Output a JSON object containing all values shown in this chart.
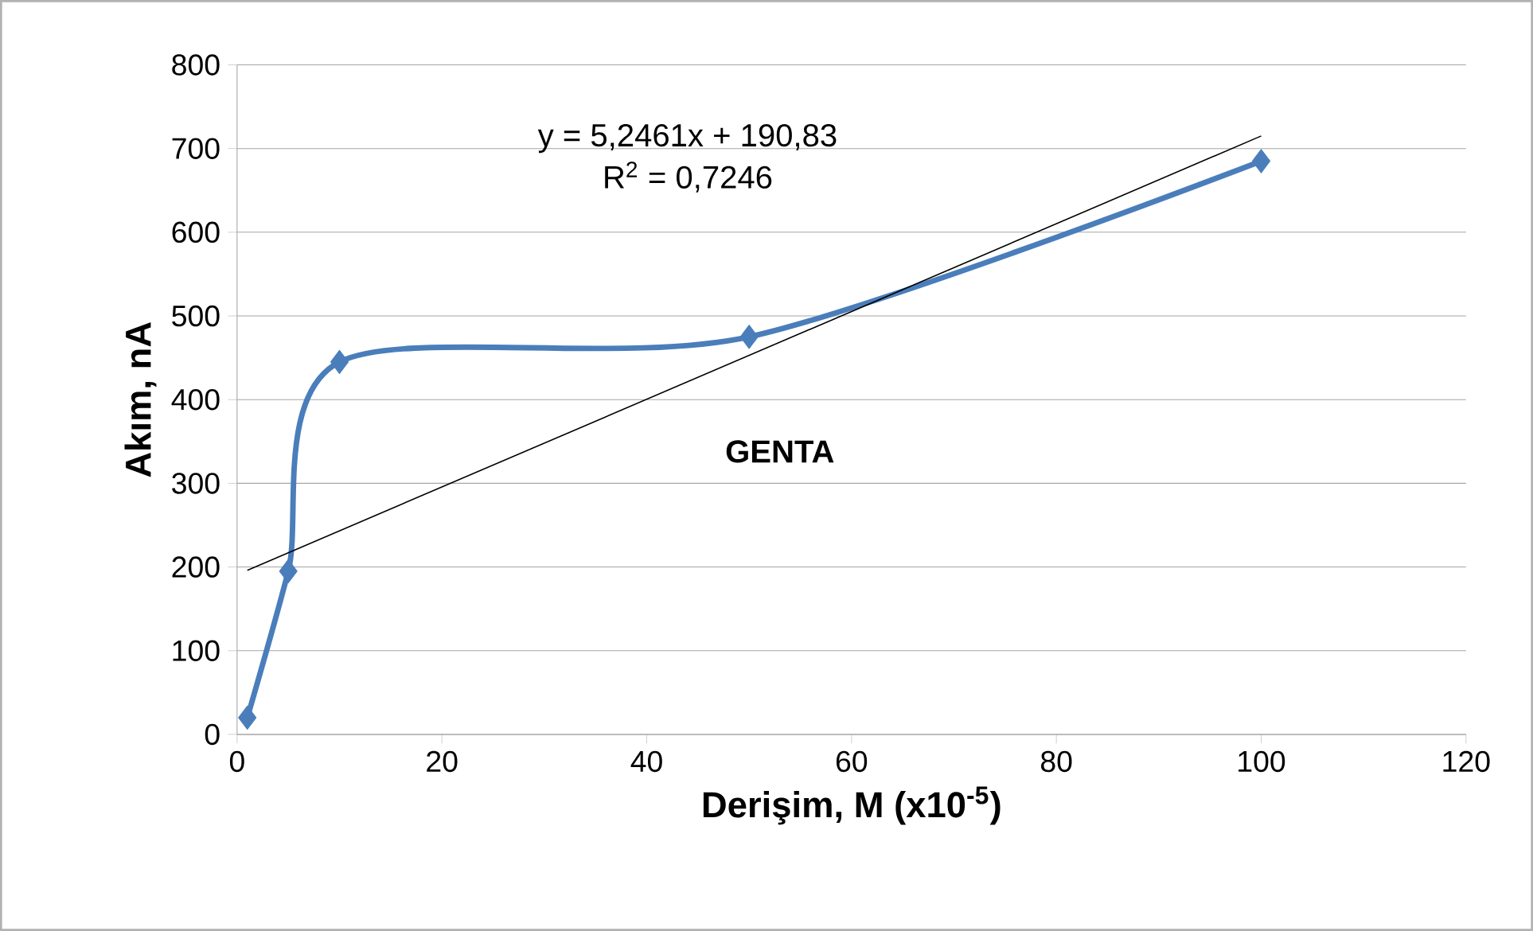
{
  "chart_data": {
    "type": "line",
    "xlabel": "Derişim, M (x10$^{-5}$)",
    "ylabel": "Akım, nA",
    "annotations": [
      "y = 5,2461x + 190,83",
      "R$^{2}$ = 0,7246",
      "GENTA"
    ],
    "xlim": [
      0,
      120
    ],
    "xticks": [
      0,
      20,
      40,
      60,
      80,
      100,
      120
    ],
    "ylim": [
      0,
      800
    ],
    "yticks": [
      0,
      100,
      200,
      300,
      400,
      500,
      600,
      700,
      800
    ],
    "grid": "y",
    "marker": "diamond",
    "series": [
      {
        "color": "#4a7ebb",
        "x": [
          1,
          5,
          10,
          50,
          100
        ],
        "values": [
          20,
          195,
          445,
          475,
          685
        ]
      },
      {
        "color": "#000000",
        "x": [
          1,
          100
        ],
        "values": [
          196,
          715
        ],
        "marker": "none",
        "line_style": "solid"
      }
    ]
  }
}
